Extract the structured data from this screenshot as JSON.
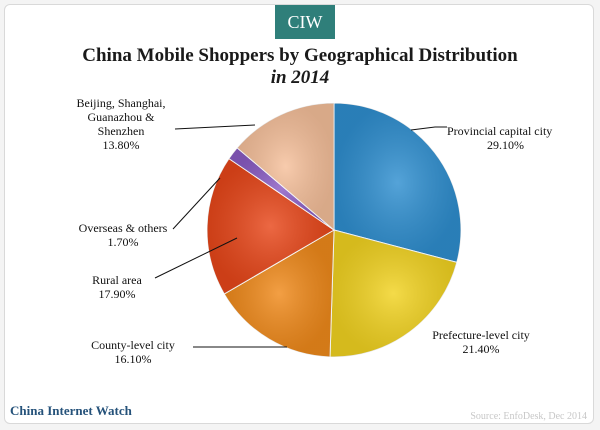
{
  "header": {
    "badge": "CIW",
    "title": "China Mobile Shoppers by Geographical Distribution",
    "subtitle": "in 2014"
  },
  "footer": {
    "brand": "China Internet Watch",
    "source": "Source: EnfoDesk, Dec 2014"
  },
  "chart_data": {
    "type": "pie",
    "title": "China Mobile Shoppers by Geographical Distribution",
    "subtitle": "in 2014",
    "start_angle_deg": 0,
    "direction": "clockwise",
    "slices": [
      {
        "label": "Provincial capital city",
        "value": 29.1,
        "value_label": "29.10%",
        "color": "#2f8fd0"
      },
      {
        "label": "Prefecture-level city",
        "value": 21.4,
        "value_label": "21.40%",
        "color": "#f2d321"
      },
      {
        "label": "County-level city",
        "value": 16.1,
        "value_label": "16.10%",
        "color": "#f08a1b"
      },
      {
        "label": "Rural area",
        "value": 17.9,
        "value_label": "17.90%",
        "color": "#e8471a"
      },
      {
        "label": "Overseas & others",
        "value": 1.7,
        "value_label": "1.70%",
        "color": "#8a5cc4"
      },
      {
        "label": "Beijing, Shanghai, Guanazhou & Shenzhen",
        "value": 13.8,
        "value_label": "13.80%",
        "color": "#f6c09b"
      }
    ]
  }
}
